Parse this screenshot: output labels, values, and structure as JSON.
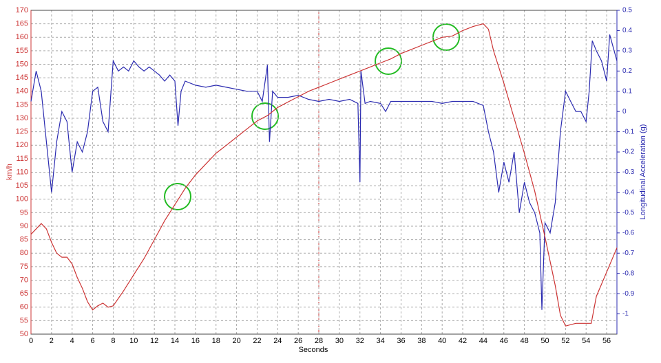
{
  "chart_data": {
    "type": "line",
    "x_label": "Seconds",
    "y_label": "km/h",
    "y2_label": "Longitudinal Acceleration (g)",
    "xlim": [
      0,
      57
    ],
    "xticks": [
      0,
      2,
      4,
      6,
      8,
      10,
      12,
      14,
      16,
      18,
      20,
      22,
      24,
      26,
      28,
      30,
      32,
      34,
      36,
      38,
      40,
      42,
      44,
      46,
      48,
      50,
      52,
      54,
      56
    ],
    "ylim": [
      50,
      170
    ],
    "yticks": [
      50,
      55,
      60,
      65,
      70,
      75,
      80,
      85,
      90,
      95,
      100,
      105,
      110,
      115,
      120,
      125,
      130,
      135,
      140,
      145,
      150,
      155,
      160,
      165,
      170
    ],
    "y2lim": [
      -1.1,
      0.5
    ],
    "y2ticks": [
      -1,
      -0.9,
      -0.8,
      -0.7,
      -0.6,
      -0.5,
      -0.4,
      -0.3,
      -0.2,
      -0.1,
      0,
      0.1,
      0.2,
      0.3,
      0.4,
      0.5
    ],
    "grid": true,
    "series": [
      {
        "name": "km/h",
        "color": "#cc3333",
        "axis": "y",
        "x": [
          0,
          0.5,
          1,
          1.5,
          2,
          2.5,
          3,
          3.5,
          4,
          4.5,
          5,
          5.5,
          6,
          6.5,
          7,
          7.5,
          8,
          9,
          10,
          11,
          12,
          13,
          14,
          14.5,
          15,
          16,
          17,
          18,
          19,
          20,
          21,
          22,
          23,
          24,
          25,
          26,
          27,
          28,
          29,
          30,
          31,
          32,
          33,
          34,
          35,
          36,
          37,
          38,
          39,
          40,
          41,
          42,
          43,
          44,
          44.5,
          45,
          46,
          47,
          48,
          49,
          50,
          51,
          51.5,
          52,
          53,
          54,
          54.5,
          55,
          56,
          57
        ],
        "values": [
          87,
          89,
          91,
          89,
          84,
          80,
          78.5,
          78.5,
          76,
          71,
          67,
          62,
          59,
          60.5,
          61.5,
          60,
          60.5,
          66,
          72,
          78,
          85,
          92,
          98,
          101,
          104,
          109,
          113,
          117,
          120,
          123,
          126,
          129,
          131,
          134,
          136,
          138,
          140,
          141.5,
          143,
          144.5,
          146,
          147.5,
          149,
          150.5,
          152,
          154,
          155.5,
          157,
          158.5,
          160,
          160.5,
          162.5,
          164,
          165,
          163,
          155,
          143,
          130,
          117,
          103,
          86,
          68,
          57,
          53,
          54,
          54,
          54,
          64,
          73,
          82
        ]
      },
      {
        "name": "Longitudinal Acceleration (g)",
        "color": "#2b2bb0",
        "axis": "y2",
        "x": [
          0,
          0.5,
          1,
          1.5,
          2,
          2.5,
          3,
          3.5,
          4,
          4.5,
          5,
          5.5,
          6,
          6.5,
          7,
          7.5,
          8,
          8.5,
          9,
          9.5,
          10,
          10.5,
          11,
          11.5,
          12,
          12.5,
          13,
          13.5,
          14,
          14.3,
          14.6,
          15,
          16,
          17,
          18,
          19,
          20,
          21,
          22,
          22.5,
          23,
          23.2,
          23.5,
          24,
          25,
          26,
          27,
          28,
          29,
          30,
          31,
          31.8,
          32,
          32.1,
          32.5,
          33,
          34,
          34.5,
          35,
          36,
          37,
          38,
          39,
          40,
          41,
          42,
          43,
          44,
          44.5,
          45,
          45.5,
          46,
          46.5,
          47,
          47.5,
          48,
          48.5,
          49,
          49.5,
          49.7,
          50,
          50.5,
          51,
          51.5,
          52,
          52.5,
          53,
          53.5,
          54,
          54.3,
          54.6,
          55,
          55.5,
          56,
          56.3,
          57
        ],
        "values": [
          0.05,
          0.2,
          0.1,
          -0.15,
          -0.4,
          -0.15,
          0,
          -0.05,
          -0.3,
          -0.15,
          -0.2,
          -0.1,
          0.1,
          0.12,
          -0.05,
          -0.1,
          0.25,
          0.2,
          0.22,
          0.2,
          0.25,
          0.22,
          0.2,
          0.22,
          0.2,
          0.18,
          0.15,
          0.18,
          0.15,
          -0.07,
          0.1,
          0.15,
          0.13,
          0.12,
          0.13,
          0.12,
          0.11,
          0.1,
          0.1,
          0.05,
          0.23,
          -0.15,
          0.1,
          0.07,
          0.07,
          0.08,
          0.06,
          0.05,
          0.06,
          0.05,
          0.06,
          0.04,
          -0.35,
          0.2,
          0.04,
          0.05,
          0.04,
          0,
          0.05,
          0.05,
          0.05,
          0.05,
          0.05,
          0.04,
          0.05,
          0.05,
          0.05,
          0.03,
          -0.1,
          -0.2,
          -0.4,
          -0.25,
          -0.35,
          -0.2,
          -0.5,
          -0.35,
          -0.45,
          -0.5,
          -0.6,
          -0.98,
          -0.55,
          -0.6,
          -0.45,
          -0.1,
          0.1,
          0.05,
          0,
          0,
          -0.05,
          0.1,
          0.35,
          0.3,
          0.25,
          0.15,
          0.38,
          0.25
        ]
      }
    ]
  }
}
